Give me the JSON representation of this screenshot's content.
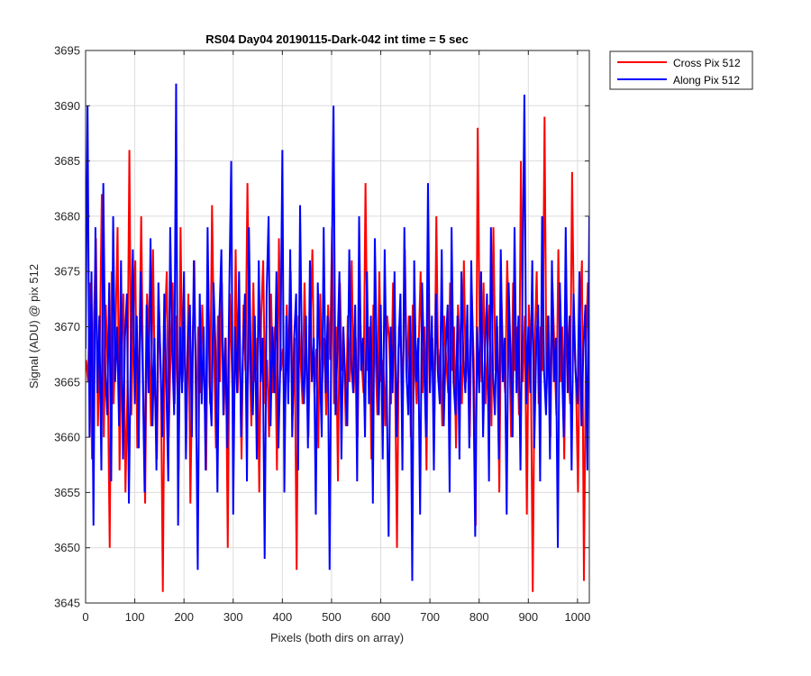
{
  "chart_data": {
    "type": "line",
    "title": "RS04 Day04 20190115-Dark-042 int time = 5 sec",
    "xlabel": "Pixels (both dirs on array)",
    "ylabel": "Signal (ADU) @ pix 512",
    "xlim": [
      0,
      1024
    ],
    "ylim": [
      3645,
      3695
    ],
    "xticks": [
      0,
      100,
      200,
      300,
      400,
      500,
      600,
      700,
      800,
      900,
      1000
    ],
    "yticks": [
      3645,
      3650,
      3655,
      3660,
      3665,
      3670,
      3675,
      3680,
      3685,
      3690,
      3695
    ],
    "grid": true,
    "legend_position": "outside-top-right",
    "series": [
      {
        "name": "Cross Pix 512",
        "color": "#ff0000",
        "x_start": 1,
        "x_step": 4,
        "values": [
          3667,
          3665,
          3674,
          3658,
          3671,
          3678,
          3661,
          3669,
          3682,
          3660,
          3672,
          3666,
          3650,
          3675,
          3663,
          3670,
          3679,
          3657,
          3668,
          3673,
          3655,
          3664,
          3686,
          3662,
          3671,
          3676,
          3659,
          3667,
          3680,
          3665,
          3654,
          3673,
          3669,
          3661,
          3677,
          3664,
          3658,
          3672,
          3666,
          3646,
          3670,
          3675,
          3660,
          3668,
          3674,
          3663,
          3671,
          3657,
          3679,
          3665,
          3669,
          3662,
          3673,
          3654,
          3667,
          3676,
          3660,
          3670,
          3664,
          3672,
          3666,
          3657,
          3675,
          3663,
          3681,
          3668,
          3659,
          3671,
          3665,
          3674,
          3662,
          3669,
          3650,
          3673,
          3667,
          3660,
          3677,
          3664,
          3670,
          3658,
          3672,
          3666,
          3683,
          3668,
          3661,
          3674,
          3665,
          3669,
          3655,
          3671,
          3676,
          3663,
          3667,
          3660,
          3673,
          3664,
          3670,
          3657,
          3678,
          3666,
          3668,
          3661,
          3672,
          3665,
          3675,
          3662,
          3669,
          3648,
          3671,
          3667,
          3663,
          3674,
          3666,
          3660,
          3670,
          3677,
          3664,
          3668,
          3659,
          3673,
          3665,
          3669,
          3662,
          3672,
          3667,
          3679,
          3663,
          3670,
          3656,
          3674,
          3666,
          3668,
          3661,
          3671,
          3665,
          3676,
          3664,
          3669,
          3660,
          3673,
          3667,
          3664,
          3683,
          3666,
          3670,
          3658,
          3672,
          3668,
          3662,
          3675,
          3665,
          3667,
          3661,
          3671,
          3669,
          3663,
          3674,
          3666,
          3650,
          3670,
          3668,
          3664,
          3677,
          3665,
          3671,
          3660,
          3672,
          3667,
          3663,
          3668,
          3675,
          3664,
          3670,
          3657,
          3673,
          3666,
          3669,
          3662,
          3680,
          3665,
          3668,
          3661,
          3671,
          3667,
          3664,
          3674,
          3666,
          3670,
          3659,
          3672,
          3668,
          3663,
          3676,
          3665,
          3669,
          3660,
          3673,
          3667,
          3652,
          3688,
          3670,
          3665,
          3674,
          3663,
          3668,
          3672,
          3661,
          3679,
          3666,
          3670,
          3655,
          3673,
          3667,
          3664,
          3676,
          3669,
          3660,
          3674,
          3666,
          3670,
          3662,
          3685,
          3665,
          3671,
          3653,
          3672,
          3667,
          3646,
          3668,
          3675,
          3663,
          3670,
          3666,
          3689,
          3664,
          3671,
          3660,
          3674,
          3668,
          3662,
          3677,
          3665,
          3670,
          3658,
          3673,
          3667,
          3663,
          3684,
          3669,
          3665,
          3655,
          3671,
          3676,
          3647,
          3668,
          3674,
          3664,
          3670,
          3661,
          3673
        ]
      },
      {
        "name": "Along Pix 512",
        "color": "#0000ff",
        "x_start": 0,
        "x_step": 4,
        "values": [
          3668,
          3690,
          3660,
          3675,
          3652,
          3679,
          3664,
          3671,
          3657,
          3683,
          3666,
          3662,
          3674,
          3656,
          3680,
          3665,
          3670,
          3661,
          3676,
          3658,
          3669,
          3673,
          3654,
          3668,
          3677,
          3663,
          3671,
          3659,
          3675,
          3666,
          3655,
          3672,
          3664,
          3678,
          3661,
          3669,
          3657,
          3674,
          3667,
          3660,
          3673,
          3665,
          3656,
          3679,
          3668,
          3662,
          3692,
          3652,
          3670,
          3664,
          3675,
          3658,
          3669,
          3672,
          3660,
          3676,
          3666,
          3648,
          3673,
          3663,
          3670,
          3657,
          3679,
          3665,
          3661,
          3674,
          3668,
          3655,
          3671,
          3677,
          3662,
          3669,
          3659,
          3673,
          3685,
          3653,
          3670,
          3664,
          3675,
          3660,
          3668,
          3673,
          3656,
          3679,
          3666,
          3662,
          3671,
          3658,
          3676,
          3665,
          3669,
          3649,
          3673,
          3680,
          3661,
          3670,
          3664,
          3675,
          3659,
          3667,
          3686,
          3655,
          3671,
          3663,
          3677,
          3660,
          3669,
          3673,
          3657,
          3681,
          3666,
          3663,
          3671,
          3659,
          3676,
          3665,
          3669,
          3653,
          3674,
          3667,
          3660,
          3679,
          3664,
          3671,
          3648,
          3673,
          3690,
          3662,
          3668,
          3675,
          3658,
          3670,
          3665,
          3661,
          3677,
          3667,
          3664,
          3672,
          3656,
          3680,
          3666,
          3669,
          3660,
          3675,
          3663,
          3671,
          3654,
          3678,
          3667,
          3662,
          3672,
          3658,
          3677,
          3665,
          3651,
          3670,
          3664,
          3675,
          3660,
          3668,
          3673,
          3657,
          3679,
          3666,
          3662,
          3671,
          3647,
          3676,
          3665,
          3669,
          3653,
          3674,
          3667,
          3660,
          3683,
          3664,
          3671,
          3657,
          3673,
          3666,
          3663,
          3677,
          3661,
          3668,
          3672,
          3655,
          3679,
          3665,
          3662,
          3671,
          3658,
          3675,
          3667,
          3664,
          3672,
          3659,
          3676,
          3666,
          3651,
          3670,
          3664,
          3675,
          3660,
          3668,
          3673,
          3656,
          3679,
          3666,
          3662,
          3671,
          3658,
          3677,
          3665,
          3669,
          3653,
          3674,
          3667,
          3660,
          3679,
          3664,
          3671,
          3657,
          3673,
          3691,
          3663,
          3670,
          3664,
          3676,
          3659,
          3668,
          3672,
          3656,
          3680,
          3666,
          3662,
          3671,
          3658,
          3676,
          3665,
          3669,
          3650,
          3674,
          3667,
          3660,
          3679,
          3664,
          3671,
          3657,
          3673,
          3666,
          3663,
          3675,
          3661,
          3668,
          3672,
          3657,
          3680,
          3665,
          3662,
          3671
        ]
      }
    ]
  }
}
